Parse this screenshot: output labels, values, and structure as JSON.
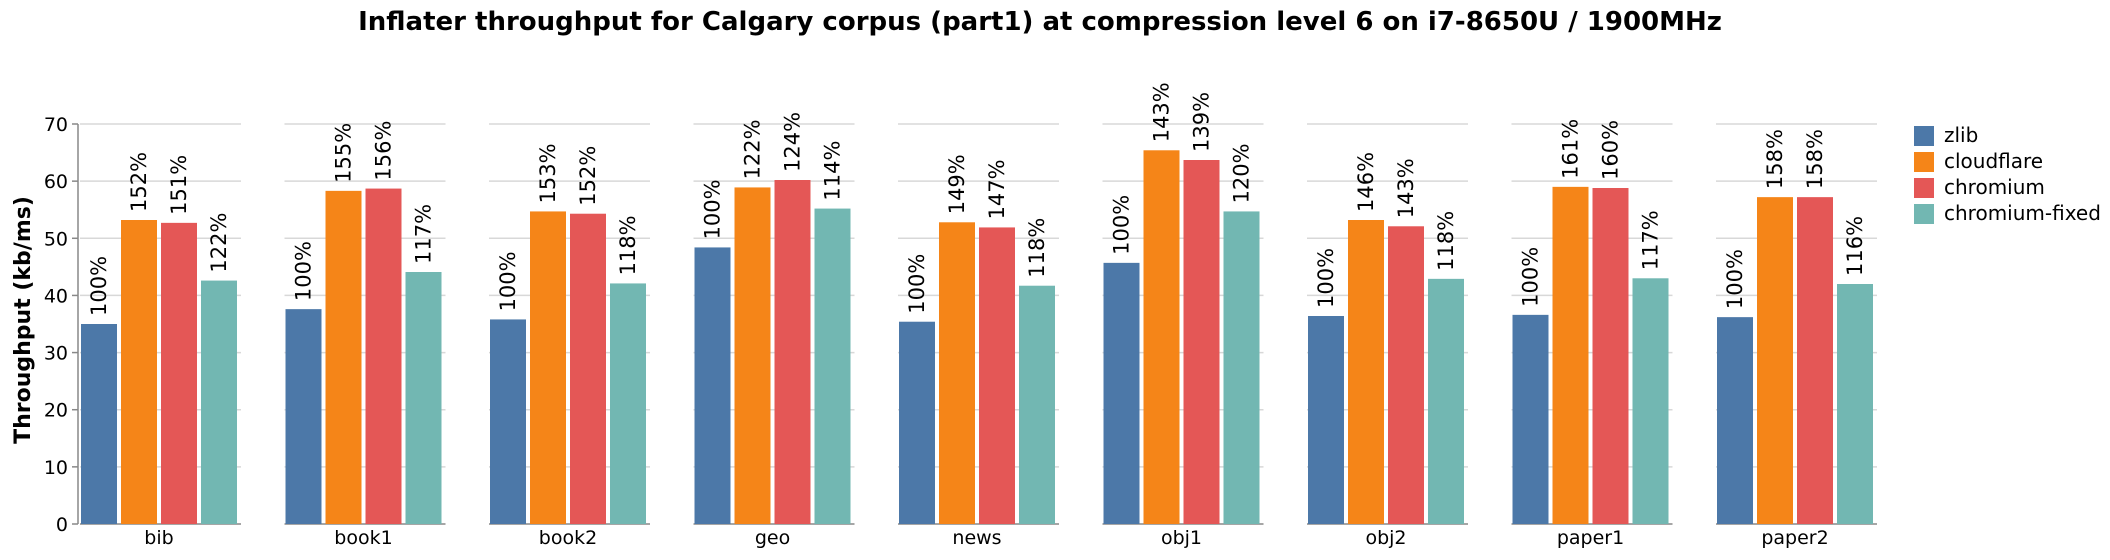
{
  "chart_data": {
    "type": "bar",
    "title": "Inflater throughput for Calgary corpus (part1) at compression level 6 on i7-8650U / 1900MHz",
    "ylabel": "Throughput (kb/ms)",
    "xlabel": "",
    "ylim": [
      0,
      70
    ],
    "yticks": [
      0,
      10,
      20,
      30,
      40,
      50,
      60,
      70
    ],
    "grid": true,
    "legend_position": "right",
    "categories": [
      "bib",
      "book1",
      "book2",
      "geo",
      "news",
      "obj1",
      "obj2",
      "paper1",
      "paper2"
    ],
    "series": [
      {
        "name": "zlib",
        "color": "#4c78a8",
        "values": [
          35.0,
          37.6,
          35.8,
          48.4,
          35.4,
          45.7,
          36.4,
          36.6,
          36.2
        ],
        "labels": [
          "100%",
          "100%",
          "100%",
          "100%",
          "100%",
          "100%",
          "100%",
          "100%",
          "100%"
        ]
      },
      {
        "name": "cloudflare",
        "color": "#f58518",
        "values": [
          53.2,
          58.3,
          54.7,
          58.9,
          52.8,
          65.4,
          53.2,
          59.0,
          57.2
        ],
        "labels": [
          "152%",
          "155%",
          "153%",
          "122%",
          "149%",
          "143%",
          "146%",
          "161%",
          "158%"
        ]
      },
      {
        "name": "chromium",
        "color": "#e45756",
        "values": [
          52.7,
          58.7,
          54.3,
          60.2,
          51.9,
          63.7,
          52.1,
          58.8,
          57.2
        ],
        "labels": [
          "151%",
          "156%",
          "152%",
          "124%",
          "147%",
          "139%",
          "143%",
          "160%",
          "158%"
        ]
      },
      {
        "name": "chromium-fixed",
        "color": "#72b7b2",
        "values": [
          42.6,
          44.1,
          42.1,
          55.2,
          41.7,
          54.7,
          42.9,
          43.0,
          42.0
        ],
        "labels": [
          "122%",
          "117%",
          "118%",
          "114%",
          "118%",
          "120%",
          "118%",
          "117%",
          "116%"
        ]
      }
    ]
  }
}
